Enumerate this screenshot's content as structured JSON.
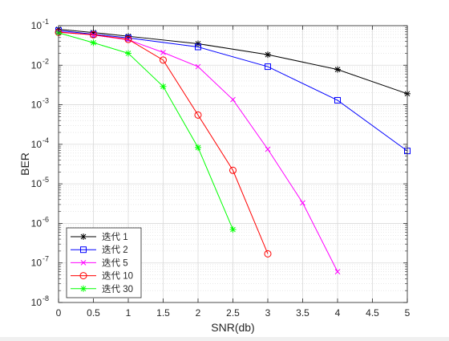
{
  "chart_data": {
    "type": "line",
    "title": "",
    "xlabel": "SNR(db)",
    "ylabel": "BER",
    "xlim": [
      0,
      5
    ],
    "ylim": [
      1e-08,
      0.1
    ],
    "yscale": "log",
    "grid": true,
    "minor_grid": true,
    "legend_position": "bottom-left",
    "xticks": [
      {
        "value": 0,
        "label": "0"
      },
      {
        "value": 0.5,
        "label": "0.5"
      },
      {
        "value": 1,
        "label": "1"
      },
      {
        "value": 1.5,
        "label": "1.5"
      },
      {
        "value": 2,
        "label": "2"
      },
      {
        "value": 2.5,
        "label": "2.5"
      },
      {
        "value": 3,
        "label": "3"
      },
      {
        "value": 3.5,
        "label": "3.5"
      },
      {
        "value": 4,
        "label": "4"
      },
      {
        "value": 4.5,
        "label": "4.5"
      },
      {
        "value": 5,
        "label": "5"
      }
    ],
    "yticks": [
      {
        "value": 1e-08,
        "base": "10",
        "exp": "-8"
      },
      {
        "value": 1e-07,
        "base": "10",
        "exp": "-7"
      },
      {
        "value": 1e-06,
        "base": "10",
        "exp": "-6"
      },
      {
        "value": 1e-05,
        "base": "10",
        "exp": "-5"
      },
      {
        "value": 0.0001,
        "base": "10",
        "exp": "-4"
      },
      {
        "value": 0.001,
        "base": "10",
        "exp": "-3"
      },
      {
        "value": 0.01,
        "base": "10",
        "exp": "-2"
      },
      {
        "value": 0.1,
        "base": "10",
        "exp": "-1"
      }
    ],
    "series": [
      {
        "name": "迭代 1",
        "color": "#000000",
        "marker": "asterisk",
        "x": [
          0,
          0.5,
          1,
          2,
          3,
          4,
          5
        ],
        "y": [
          0.081,
          0.067,
          0.054,
          0.035,
          0.0185,
          0.0078,
          0.0019
        ]
      },
      {
        "name": "迭代 2",
        "color": "#0000ff",
        "marker": "square",
        "x": [
          0,
          0.5,
          1,
          2,
          3,
          4,
          5
        ],
        "y": [
          0.075,
          0.061,
          0.049,
          0.029,
          0.0092,
          0.0013,
          6.8e-05
        ]
      },
      {
        "name": "迭代 5",
        "color": "#ff00ff",
        "marker": "x",
        "x": [
          0,
          0.5,
          1,
          1.5,
          2,
          2.5,
          3,
          3.5,
          4
        ],
        "y": [
          0.07,
          0.058,
          0.044,
          0.021,
          0.0092,
          0.00135,
          7.5e-05,
          3.3e-06,
          6e-08
        ]
      },
      {
        "name": "迭代 10",
        "color": "#ff0000",
        "marker": "circle",
        "x": [
          0,
          0.5,
          1,
          1.5,
          2,
          2.5,
          3
        ],
        "y": [
          0.068,
          0.059,
          0.045,
          0.0135,
          0.00055,
          2.2e-05,
          1.7e-07
        ]
      },
      {
        "name": "迭代 30",
        "color": "#00ff00",
        "marker": "asterisk",
        "x": [
          0,
          0.5,
          1,
          1.5,
          2,
          2.5
        ],
        "y": [
          0.066,
          0.037,
          0.02,
          0.0029,
          8.3e-05,
          7e-07
        ]
      }
    ]
  }
}
